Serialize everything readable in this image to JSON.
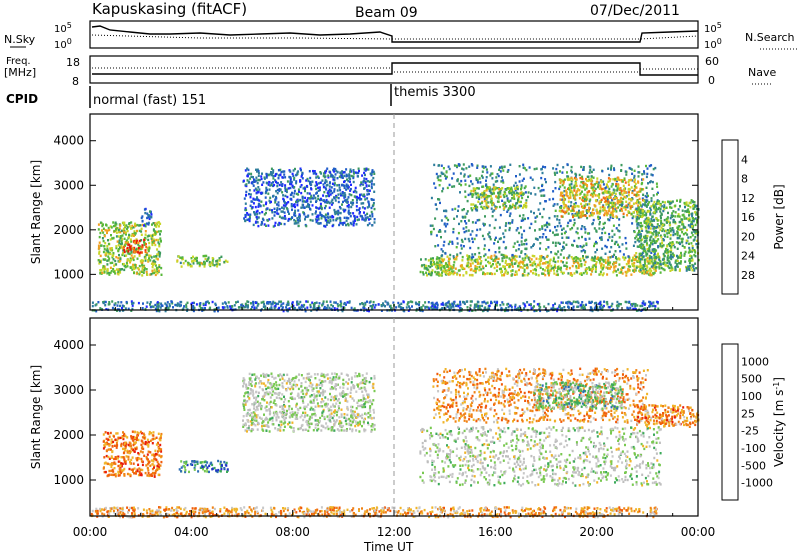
{
  "header": {
    "station": "Kapuskasing (fitACF)",
    "beam": "Beam 09",
    "date": "07/Dec/2011"
  },
  "top_panels": {
    "nsky_label": "N.Sky",
    "nsky_ticks": [
      "10^5",
      "10^0"
    ],
    "nsearch_label": "N.Search",
    "freq_label_1": "Freq.",
    "freq_label_2": "[MHz]",
    "freq_ticks": [
      "18",
      "8"
    ],
    "nave_label": "Nave",
    "nave_ticks": [
      "60",
      "0"
    ],
    "cpid_label": "CPID",
    "cpid_modes": [
      {
        "name": "normal (fast) 151",
        "start_hour": 0,
        "end_hour": 12
      },
      {
        "name": "themis 3300",
        "start_hour": 12,
        "end_hour": 24
      }
    ]
  },
  "chart_data": [
    {
      "type": "heatmap",
      "name": "power",
      "xlabel": "",
      "ylabel": "Slant Range [km]",
      "xlim": [
        0,
        24
      ],
      "ylim": [
        200,
        4600
      ],
      "yticks": [
        1000,
        2000,
        3000,
        4000
      ],
      "colorbar": {
        "label": "Power [dB]",
        "ticks": [
          "4",
          "8",
          "12",
          "16",
          "20",
          "24",
          "28"
        ],
        "colors": [
          "#1e28ff",
          "#1f5cc8",
          "#2e7d9c",
          "#3c9a5e",
          "#58b83a",
          "#c8d62a",
          "#f0a020",
          "#f06a10",
          "#e81a0a"
        ]
      },
      "regions": [
        {
          "t": [
            0.3,
            2.8
          ],
          "r": [
            1000,
            2200
          ],
          "level": 0.55
        },
        {
          "t": [
            1.3,
            2.2
          ],
          "r": [
            1500,
            1800
          ],
          "level": 0.9
        },
        {
          "t": [
            3.4,
            5.4
          ],
          "r": [
            1200,
            1450
          ],
          "level": 0.5
        },
        {
          "t": [
            2.0,
            2.4
          ],
          "r": [
            2100,
            2500
          ],
          "level": 0.25
        },
        {
          "t": [
            6.0,
            11.2
          ],
          "r": [
            2100,
            3400
          ],
          "level": 0.2
        },
        {
          "t": [
            13.0,
            14.2
          ],
          "r": [
            1000,
            1400
          ],
          "level": 0.5
        },
        {
          "t": [
            13.6,
            22.5
          ],
          "r": [
            1000,
            1450
          ],
          "level": 0.6
        },
        {
          "t": [
            13.4,
            22.4
          ],
          "r": [
            1400,
            3500
          ],
          "level": 0.3
        },
        {
          "t": [
            18.5,
            21.8
          ],
          "r": [
            2300,
            3200
          ],
          "level": 0.65
        },
        {
          "t": [
            15.0,
            17.2
          ],
          "r": [
            2500,
            3000
          ],
          "level": 0.55
        },
        {
          "t": [
            21.5,
            24.0
          ],
          "r": [
            1100,
            2700
          ],
          "level": 0.45
        },
        {
          "t": [
            0.0,
            22.4
          ],
          "r": [
            200,
            420
          ],
          "level": 0.25
        }
      ]
    },
    {
      "type": "heatmap",
      "name": "velocity",
      "xlabel": "Time UT",
      "ylabel": "Slant Range [km]",
      "xlim": [
        0,
        24
      ],
      "ylim": [
        200,
        4600
      ],
      "yticks": [
        1000,
        2000,
        3000,
        4000
      ],
      "xticks": [
        "00:00",
        "04:00",
        "08:00",
        "12:00",
        "16:00",
        "20:00",
        "00:00"
      ],
      "colorbar": {
        "label": "Velocity [m s^-1]",
        "ticks": [
          "1000",
          "500",
          "100",
          "25",
          "-25",
          "-100",
          "-500",
          "-1000"
        ],
        "colors": [
          "#1e32c8",
          "#2e6eb4",
          "#3caa5a",
          "#78c850",
          "#bebebe",
          "#c8c8c8",
          "#f0b428",
          "#f08214",
          "#f05a0a",
          "#e81a0a"
        ]
      },
      "regions": [
        {
          "t": [
            0.5,
            2.8
          ],
          "r": [
            1100,
            2100
          ],
          "level": 0.78
        },
        {
          "t": [
            3.4,
            5.4
          ],
          "r": [
            1200,
            1450
          ],
          "level": 0.2
        },
        {
          "t": [
            6.0,
            11.2
          ],
          "r": [
            2100,
            3400
          ],
          "level": 0.45
        },
        {
          "t": [
            13.0,
            22.5
          ],
          "r": [
            900,
            2200
          ],
          "level": 0.45
        },
        {
          "t": [
            13.5,
            22.0
          ],
          "r": [
            2300,
            3500
          ],
          "level": 0.72
        },
        {
          "t": [
            17.5,
            21.0
          ],
          "r": [
            2600,
            3200
          ],
          "level": 0.35
        },
        {
          "t": [
            21.5,
            24.0
          ],
          "r": [
            2200,
            2700
          ],
          "level": 0.75
        },
        {
          "t": [
            0.0,
            22.4
          ],
          "r": [
            200,
            420
          ],
          "level": 0.7
        }
      ]
    }
  ]
}
